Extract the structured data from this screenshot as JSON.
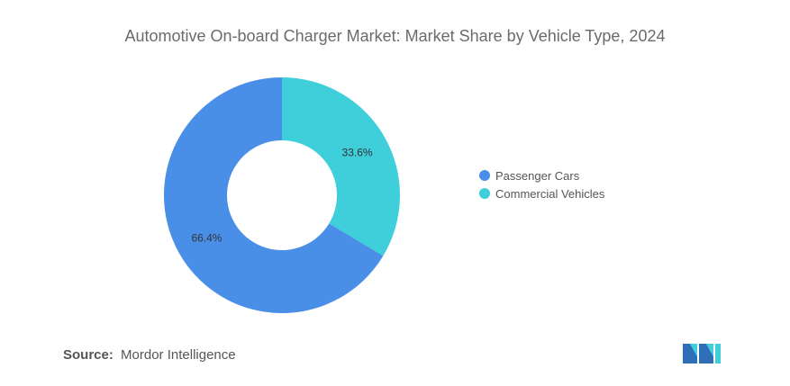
{
  "header": {
    "title": "Automotive On-board Charger Market: Market Share by Vehicle Type, 2024"
  },
  "chart_data": {
    "type": "pie",
    "donut": true,
    "categories": [
      "Passenger Cars",
      "Commercial Vehicles"
    ],
    "values": [
      66.4,
      33.6
    ],
    "labels": [
      "66.4%",
      "33.6%"
    ],
    "colors": [
      "#4a8fe7",
      "#3ecfda"
    ],
    "legend_position": "right",
    "title": "Automotive On-board Charger Market: Market Share by Vehicle Type, 2024"
  },
  "legend": {
    "items": [
      {
        "label": "Passenger Cars",
        "color": "#4a8fe7"
      },
      {
        "label": "Commercial Vehicles",
        "color": "#3ecfda"
      }
    ]
  },
  "footer": {
    "source_label": "Source:",
    "source_value": "Mordor Intelligence"
  }
}
